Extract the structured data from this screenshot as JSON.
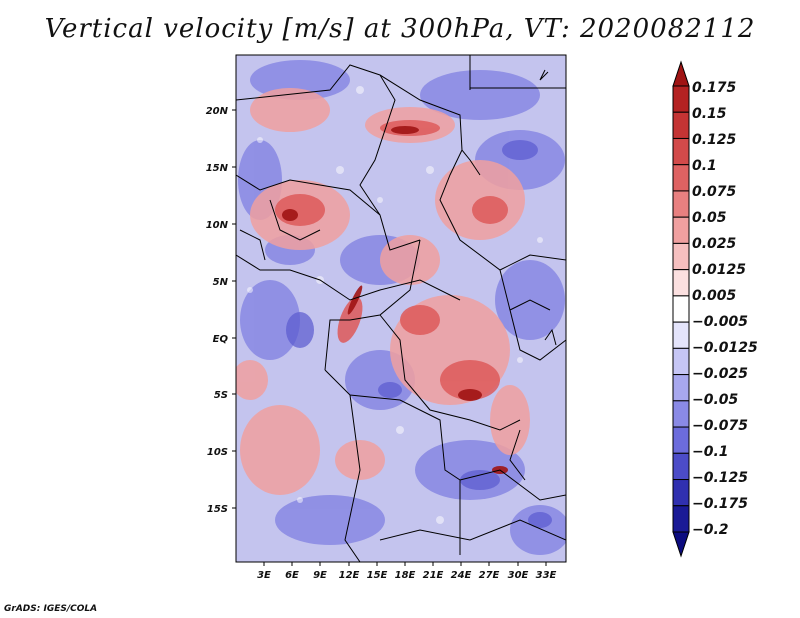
{
  "title": "Vertical velocity [m/s] at 300hPa, VT: 2020082112",
  "footer": "GrADS: IGES/COLA",
  "map": {
    "lon_labels": [
      "3E",
      "6E",
      "9E",
      "12E",
      "15E",
      "18E",
      "21E",
      "24E",
      "27E",
      "30E",
      "33E"
    ],
    "lat_labels": [
      "20N",
      "15N",
      "10N",
      "5N",
      "EQ",
      "5S",
      "10S",
      "15S"
    ]
  },
  "colorbar": {
    "labels": [
      "0.175",
      "0.15",
      "0.125",
      "0.1",
      "0.075",
      "0.05",
      "0.025",
      "0.0125",
      "0.005",
      "−0.005",
      "−0.0125",
      "−0.025",
      "−0.05",
      "−0.075",
      "−0.1",
      "−0.125",
      "−0.175",
      "−0.2"
    ],
    "colors": [
      "#a01414",
      "#b42222",
      "#c43434",
      "#d24a4a",
      "#de6262",
      "#e88080",
      "#f0a0a0",
      "#f6c0c0",
      "#fbe0e0",
      "#ffffff",
      "#e4e4fb",
      "#c6c6f5",
      "#a8a8ee",
      "#8a8ae6",
      "#6c6cdc",
      "#4c4cc8",
      "#3030b0",
      "#1a1a96",
      "#0c0c80"
    ]
  },
  "colors": {
    "map_base": "#c4c4ee",
    "positive": "#e06666",
    "strong_positive": "#b42222",
    "negative": "#7070dc",
    "strong_negative": "#3a3ab8",
    "boundary": "#000000"
  }
}
